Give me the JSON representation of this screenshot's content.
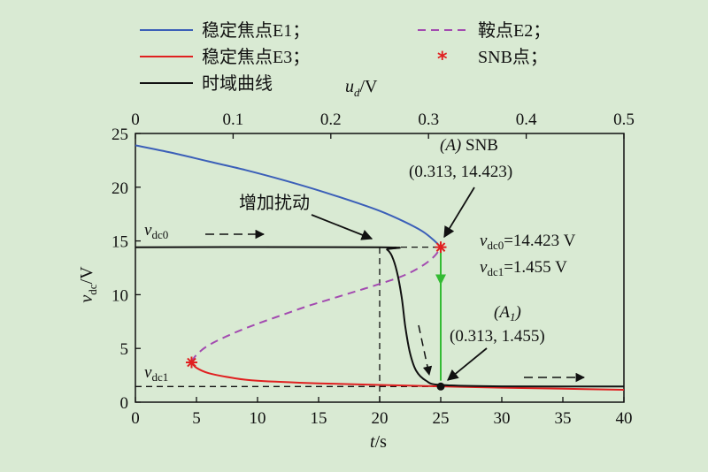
{
  "chart_data": {
    "type": "line",
    "legend": {
      "placement": "top",
      "entries": [
        {
          "label": "稳定焦点E1；",
          "color": "#3b5fb8",
          "style": "solid"
        },
        {
          "label": "鞍点E2；",
          "color": "#a34bb0",
          "style": "dashed"
        },
        {
          "label": "稳定焦点E3；",
          "color": "#e02020",
          "style": "solid"
        },
        {
          "label": "SNB点；",
          "color": "#e02020",
          "style": "marker"
        },
        {
          "label": "时域曲线",
          "color": "#111111",
          "style": "solid"
        }
      ]
    },
    "x_axis": {
      "label": "t/s",
      "range": [
        0,
        40
      ],
      "ticks": [
        0,
        5,
        10,
        15,
        20,
        25,
        30,
        35,
        40
      ]
    },
    "x2_axis": {
      "label": "ud/V",
      "label_main": "u",
      "label_sub": "d",
      "label_unit": "/V",
      "range": [
        0,
        0.5
      ],
      "ticks": [
        "0",
        "0.1",
        "0.2",
        "0.3",
        "0.4",
        "0.5"
      ]
    },
    "y_axis": {
      "label": "vdc/V",
      "label_main": "v",
      "label_sub": "dc",
      "label_unit": "/V",
      "range": [
        0,
        25
      ],
      "ticks": [
        0,
        5,
        10,
        15,
        20,
        25
      ]
    },
    "series": [
      {
        "name": "稳定焦点E1",
        "color": "#3b5fb8",
        "style": "solid",
        "points": [
          [
            0,
            23.9
          ],
          [
            3,
            23.2
          ],
          [
            6,
            22.4
          ],
          [
            9,
            21.6
          ],
          [
            12,
            20.7
          ],
          [
            15,
            19.7
          ],
          [
            18,
            18.6
          ],
          [
            20,
            17.8
          ],
          [
            22,
            16.8
          ],
          [
            23.5,
            15.9
          ],
          [
            24.5,
            15.0
          ],
          [
            25,
            14.42
          ]
        ]
      },
      {
        "name": "鞍点E2",
        "color": "#a34bb0",
        "style": "dashed",
        "points": [
          [
            4.6,
            3.75
          ],
          [
            5,
            4.4
          ],
          [
            6,
            5.3
          ],
          [
            8,
            6.4
          ],
          [
            10,
            7.3
          ],
          [
            12,
            8.1
          ],
          [
            14,
            8.9
          ],
          [
            16,
            9.6
          ],
          [
            18,
            10.3
          ],
          [
            20,
            11.0
          ],
          [
            22,
            11.8
          ],
          [
            23.5,
            12.7
          ],
          [
            24.5,
            13.6
          ],
          [
            25,
            14.42
          ]
        ]
      },
      {
        "name": "稳定焦点E3",
        "color": "#e02020",
        "style": "solid",
        "points": [
          [
            4.6,
            3.7
          ],
          [
            5,
            3.2
          ],
          [
            6,
            2.7
          ],
          [
            8,
            2.25
          ],
          [
            10,
            2.0
          ],
          [
            15,
            1.75
          ],
          [
            20,
            1.6
          ],
          [
            25,
            1.47
          ],
          [
            30,
            1.35
          ],
          [
            35,
            1.25
          ],
          [
            40,
            1.15
          ]
        ]
      },
      {
        "name": "时域曲线",
        "color": "#111111",
        "style": "solid",
        "points": [
          [
            0,
            14.42
          ],
          [
            20,
            14.42
          ],
          [
            20.6,
            14.2
          ],
          [
            21,
            13.6
          ],
          [
            21.4,
            12.2
          ],
          [
            21.8,
            9.8
          ],
          [
            22.1,
            7.0
          ],
          [
            22.5,
            4.5
          ],
          [
            23,
            2.9
          ],
          [
            23.8,
            2.0
          ],
          [
            25,
            1.6
          ],
          [
            30,
            1.47
          ],
          [
            40,
            1.455
          ]
        ]
      }
    ],
    "markers": [
      {
        "name": "SNB点",
        "x": 25,
        "y": 14.42,
        "color": "#e02020"
      },
      {
        "name": "SNB点",
        "x": 4.6,
        "y": 3.7,
        "color": "#e02020"
      },
      {
        "name": "A1",
        "x": 25,
        "y": 1.455,
        "color": "#111111"
      }
    ],
    "reference_lines": [
      {
        "from": [
          0,
          14.42
        ],
        "to": [
          25,
          14.42
        ],
        "style": "dashed"
      },
      {
        "from": [
          0,
          1.455
        ],
        "to": [
          40,
          1.455
        ],
        "style": "dashed"
      },
      {
        "from": [
          20,
          0
        ],
        "to": [
          20,
          14.42
        ],
        "style": "dashed"
      }
    ],
    "transition_arrow": {
      "from": [
        25,
        14.0
      ],
      "to": [
        25,
        2.0
      ],
      "color": "#33bb33"
    },
    "annotations": {
      "perturb": "增加扰动",
      "vdc0_label": "vdc0",
      "vdc1_label": "vdc1",
      "snb_label": "(A) SNB",
      "snb_coords": "(0.313, 14.423)",
      "vdc0_value": "vdc0=14.423 V",
      "vdc1_value": "vdc1=1.455 V",
      "a1_label": "(A1)",
      "a1_coords": "(0.313, 1.455)"
    }
  }
}
